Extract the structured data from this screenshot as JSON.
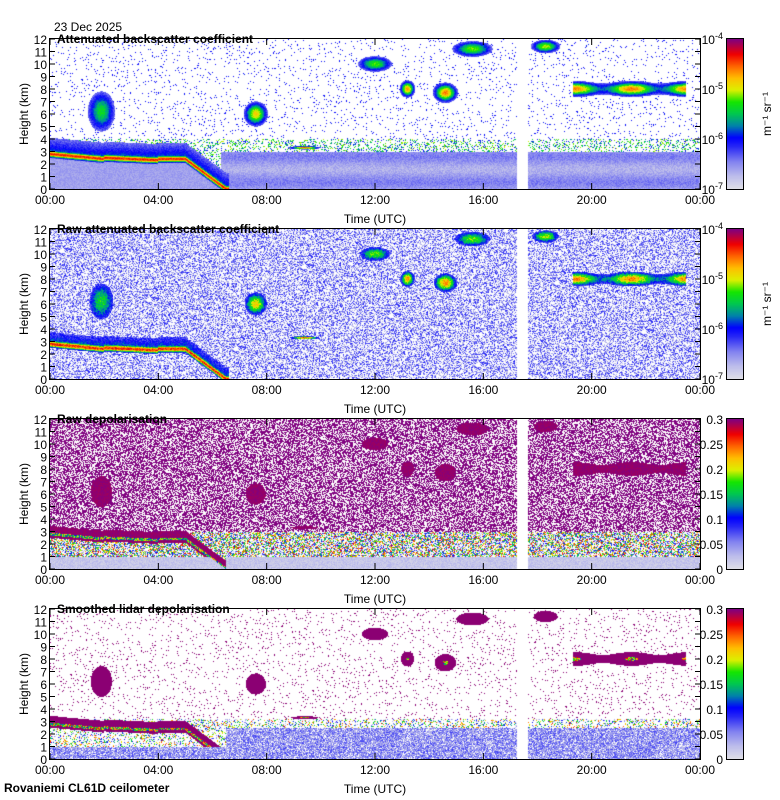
{
  "header": {
    "date": "23 Dec 2025"
  },
  "footer": {
    "instrument": "Rovaniemi CL61D ceilometer"
  },
  "chart_data": [
    {
      "type": "heatmap",
      "title": "Attenuated backscatter coefficient",
      "xlabel": "Time (UTC)",
      "ylabel": "Height (km)",
      "x_ticks": [
        "00:00",
        "04:00",
        "08:00",
        "12:00",
        "16:00",
        "20:00",
        "00:00"
      ],
      "x_range_hours": [
        0,
        24
      ],
      "y_ticks": [
        "0",
        "1",
        "2",
        "3",
        "4",
        "5",
        "6",
        "7",
        "8",
        "9",
        "10",
        "11",
        "12"
      ],
      "ylim": [
        0,
        12
      ],
      "colorbar": {
        "scale": "log",
        "range": [
          1e-07,
          0.0001
        ],
        "ticks": [
          "10-7",
          "10-6",
          "10-5",
          "10-4"
        ],
        "unit": "m-1 sr-1"
      },
      "data_gap_hours": [
        17.25,
        17.65
      ],
      "style": "smoothed-backscatter"
    },
    {
      "type": "heatmap",
      "title": "Raw attenuated backscatter coefficient",
      "xlabel": "Time (UTC)",
      "ylabel": "Height (km)",
      "x_ticks": [
        "00:00",
        "04:00",
        "08:00",
        "12:00",
        "16:00",
        "20:00",
        "00:00"
      ],
      "x_range_hours": [
        0,
        24
      ],
      "y_ticks": [
        "0",
        "1",
        "2",
        "3",
        "4",
        "5",
        "6",
        "7",
        "8",
        "9",
        "10",
        "11",
        "12"
      ],
      "ylim": [
        0,
        12
      ],
      "colorbar": {
        "scale": "log",
        "range": [
          1e-07,
          0.0001
        ],
        "ticks": [
          "10-7",
          "10-6",
          "10-5",
          "10-4"
        ],
        "unit": "m-1 sr-1"
      },
      "data_gap_hours": [
        17.25,
        17.65
      ],
      "style": "raw-backscatter"
    },
    {
      "type": "heatmap",
      "title": "Raw depolarisation",
      "xlabel": "Time (UTC)",
      "ylabel": "Height (km)",
      "x_ticks": [
        "00:00",
        "04:00",
        "08:00",
        "12:00",
        "16:00",
        "20:00",
        "00:00"
      ],
      "x_range_hours": [
        0,
        24
      ],
      "y_ticks": [
        "0",
        "1",
        "2",
        "3",
        "4",
        "5",
        "6",
        "7",
        "8",
        "9",
        "10",
        "11",
        "12"
      ],
      "ylim": [
        0,
        12
      ],
      "colorbar": {
        "scale": "linear",
        "range": [
          0,
          0.3
        ],
        "ticks": [
          "0",
          "0.05",
          "0.1",
          "0.15",
          "0.2",
          "0.25",
          "0.3"
        ],
        "unit": ""
      },
      "data_gap_hours": [
        17.25,
        17.65
      ],
      "style": "raw-depol"
    },
    {
      "type": "heatmap",
      "title": "Smoothed lidar depolarisation",
      "xlabel": "Time (UTC)",
      "ylabel": "Height (km)",
      "x_ticks": [
        "00:00",
        "04:00",
        "08:00",
        "12:00",
        "16:00",
        "20:00",
        "00:00"
      ],
      "x_range_hours": [
        0,
        24
      ],
      "y_ticks": [
        "0",
        "1",
        "2",
        "3",
        "4",
        "5",
        "6",
        "7",
        "8",
        "9",
        "10",
        "11",
        "12"
      ],
      "ylim": [
        0,
        12
      ],
      "colorbar": {
        "scale": "linear",
        "range": [
          0,
          0.3
        ],
        "ticks": [
          "0",
          "0.05",
          "0.1",
          "0.15",
          "0.2",
          "0.25",
          "0.3"
        ],
        "unit": ""
      },
      "data_gap_hours": [
        17.25,
        17.65
      ],
      "style": "smoothed-depol"
    }
  ]
}
